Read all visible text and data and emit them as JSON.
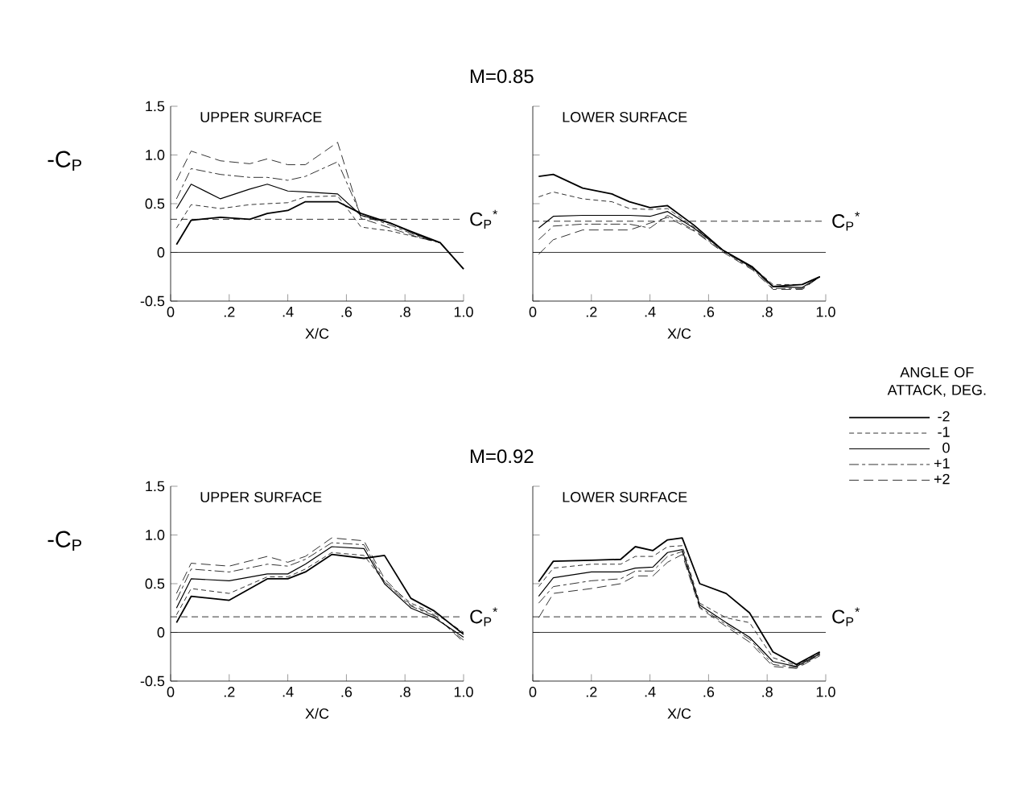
{
  "chart_data": [
    {
      "type": "line",
      "title": "M=0.85",
      "ylabel": "-C$_{P}$",
      "xlabel": "X/C",
      "annotations": [
        "UPPER SURFACE"
      ],
      "xlim": [
        0,
        1.0
      ],
      "ylim": [
        -0.5,
        1.5
      ],
      "xticks": [
        0,
        {
          "value": 0.2,
          "label": ".2"
        },
        {
          "value": 0.4,
          "label": ".4"
        },
        {
          "value": 0.6,
          "label": ".6"
        },
        {
          "value": 0.8,
          "label": ".8"
        },
        {
          "value": 1.0,
          "label": "1.0"
        }
      ],
      "yticks": [
        -0.5,
        0,
        0.5,
        {
          "value": 1.0,
          "label": "1.0"
        },
        1.5
      ],
      "grid": false,
      "legend": false,
      "marker": "none",
      "x": [
        0.02,
        0.07,
        0.17,
        0.27,
        0.33,
        0.4,
        0.46,
        0.57,
        0.65,
        0.75,
        0.85,
        0.92,
        1.0
      ],
      "series": [
        {
          "color": "#000000",
          "line_style": "solid",
          "values": [
            0.08,
            0.33,
            0.36,
            0.34,
            0.4,
            0.43,
            0.52,
            0.52,
            0.4,
            0.3,
            0.18,
            0.1,
            -0.17
          ]
        },
        {
          "color": "#000000",
          "line_style": "dashed",
          "values": [
            0.25,
            0.49,
            0.45,
            0.49,
            0.5,
            0.51,
            0.57,
            0.58,
            0.26,
            0.22,
            0.15,
            0.1,
            -0.17
          ]
        },
        {
          "color": "#000000",
          "line_style": "solid",
          "values": [
            0.45,
            0.7,
            0.55,
            0.65,
            0.7,
            0.63,
            0.62,
            0.6,
            0.38,
            0.3,
            0.17,
            0.1,
            -0.17
          ]
        },
        {
          "color": "#000000",
          "line_style": "dashed",
          "values": [
            0.55,
            0.86,
            0.8,
            0.77,
            0.77,
            0.74,
            0.78,
            0.93,
            0.38,
            0.28,
            0.16,
            0.1,
            -0.17
          ]
        },
        {
          "color": "#000000",
          "line_style": "dashed",
          "values": [
            0.74,
            1.04,
            0.94,
            0.91,
            0.96,
            0.9,
            0.9,
            1.13,
            0.35,
            0.25,
            0.15,
            0.1,
            -0.17
          ]
        }
      ],
      "ref_lines": [
        {
          "axis": "y",
          "value": 0,
          "line_style": "solid"
        },
        {
          "axis": "y",
          "value": 0.34,
          "label": "C$_{P}$$^{*}$",
          "line_style": "dashed"
        }
      ]
    },
    {
      "type": "line",
      "xlabel": "X/C",
      "annotations": [
        "LOWER SURFACE"
      ],
      "xlim": [
        0,
        1.0
      ],
      "ylim": [
        -0.5,
        1.5
      ],
      "xticks": [
        0,
        {
          "value": 0.2,
          "label": ".2"
        },
        {
          "value": 0.4,
          "label": ".4"
        },
        {
          "value": 0.6,
          "label": ".6"
        },
        {
          "value": 0.8,
          "label": ".8"
        },
        {
          "value": 1.0,
          "label": "1.0"
        }
      ],
      "yticks": [
        -0.5,
        0,
        0.5,
        1,
        1.5
      ],
      "tick_labels": "x",
      "grid": false,
      "legend": false,
      "marker": "none",
      "x": [
        0.02,
        0.07,
        0.17,
        0.27,
        0.33,
        0.4,
        0.46,
        0.55,
        0.65,
        0.75,
        0.82,
        0.92,
        0.98
      ],
      "series": [
        {
          "color": "#000000",
          "line_style": "solid",
          "values": [
            0.78,
            0.8,
            0.66,
            0.6,
            0.52,
            0.46,
            0.48,
            0.28,
            0.02,
            -0.15,
            -0.35,
            -0.33,
            -0.25
          ]
        },
        {
          "color": "#000000",
          "line_style": "dashed",
          "values": [
            0.57,
            0.62,
            0.55,
            0.52,
            0.45,
            0.44,
            0.45,
            0.26,
            0.02,
            -0.15,
            -0.33,
            -0.33,
            -0.25
          ]
        },
        {
          "color": "#000000",
          "line_style": "solid",
          "values": [
            0.25,
            0.37,
            0.38,
            0.38,
            0.38,
            0.37,
            0.42,
            0.25,
            0.02,
            -0.16,
            -0.35,
            -0.36,
            -0.25
          ]
        },
        {
          "color": "#000000",
          "line_style": "dashed",
          "values": [
            0.13,
            0.27,
            0.29,
            0.29,
            0.29,
            0.25,
            0.38,
            0.23,
            0.01,
            -0.17,
            -0.37,
            -0.37,
            -0.25
          ]
        },
        {
          "color": "#000000",
          "line_style": "dashed",
          "values": [
            -0.02,
            0.13,
            0.23,
            0.23,
            0.23,
            0.3,
            0.36,
            0.22,
            0.0,
            -0.18,
            -0.38,
            -0.38,
            -0.25
          ]
        }
      ],
      "ref_lines": [
        {
          "axis": "y",
          "value": 0,
          "line_style": "solid"
        },
        {
          "axis": "y",
          "value": 0.32,
          "label": "C$_{P}$$^{*}$",
          "line_style": "dashed"
        }
      ]
    },
    {
      "type": "line",
      "title": "M=0.92",
      "ylabel": "-C$_{P}$",
      "xlabel": "X/C",
      "annotations": [
        "UPPER SURFACE"
      ],
      "xlim": [
        0,
        1.0
      ],
      "ylim": [
        -0.5,
        1.5
      ],
      "xticks": [
        0,
        {
          "value": 0.2,
          "label": ".2"
        },
        {
          "value": 0.4,
          "label": ".4"
        },
        {
          "value": 0.6,
          "label": ".6"
        },
        {
          "value": 0.8,
          "label": ".8"
        },
        {
          "value": 1.0,
          "label": "1.0"
        }
      ],
      "yticks": [
        -0.5,
        0,
        0.5,
        {
          "value": 1.0,
          "label": "1.0"
        },
        1.5
      ],
      "grid": false,
      "legend": false,
      "marker": "none",
      "x": [
        0.02,
        0.07,
        0.2,
        0.33,
        0.4,
        0.46,
        0.55,
        0.66,
        0.73,
        0.82,
        0.9,
        1.0
      ],
      "series": [
        {
          "color": "#000000",
          "line_style": "solid",
          "values": [
            0.1,
            0.37,
            0.33,
            0.55,
            0.55,
            0.62,
            0.8,
            0.76,
            0.79,
            0.35,
            0.22,
            -0.02
          ]
        },
        {
          "color": "#000000",
          "line_style": "dashed",
          "values": [
            0.18,
            0.45,
            0.4,
            0.57,
            0.57,
            0.65,
            0.82,
            0.79,
            0.52,
            0.3,
            0.2,
            0.0
          ]
        },
        {
          "color": "#000000",
          "line_style": "solid",
          "values": [
            0.25,
            0.55,
            0.53,
            0.6,
            0.6,
            0.7,
            0.88,
            0.86,
            0.5,
            0.25,
            0.15,
            -0.05
          ]
        },
        {
          "color": "#000000",
          "line_style": "dashed",
          "values": [
            0.33,
            0.65,
            0.62,
            0.7,
            0.68,
            0.75,
            0.92,
            0.9,
            0.52,
            0.27,
            0.17,
            -0.08
          ]
        },
        {
          "color": "#000000",
          "line_style": "dashed",
          "values": [
            0.4,
            0.71,
            0.68,
            0.78,
            0.72,
            0.78,
            0.97,
            0.94,
            0.55,
            0.28,
            0.18,
            -0.1
          ]
        }
      ],
      "ref_lines": [
        {
          "axis": "y",
          "value": 0,
          "line_style": "solid"
        },
        {
          "axis": "y",
          "value": 0.16,
          "label": "C$_{P}$$^{*}$",
          "line_style": "dashed"
        }
      ]
    },
    {
      "type": "line",
      "xlabel": "X/C",
      "annotations": [
        "LOWER SURFACE"
      ],
      "xlim": [
        0,
        1.0
      ],
      "ylim": [
        -0.5,
        1.5
      ],
      "xticks": [
        0,
        {
          "value": 0.2,
          "label": ".2"
        },
        {
          "value": 0.4,
          "label": ".4"
        },
        {
          "value": 0.6,
          "label": ".6"
        },
        {
          "value": 0.8,
          "label": ".8"
        },
        {
          "value": 1.0,
          "label": "1.0"
        }
      ],
      "yticks": [
        -0.5,
        0,
        0.5,
        1,
        1.5
      ],
      "tick_labels": "x",
      "grid": false,
      "legend": "right",
      "legend_title": "ANGLE OF ATTACK, DEG.",
      "marker": "none",
      "x": [
        0.02,
        0.07,
        0.2,
        0.3,
        0.35,
        0.41,
        0.46,
        0.51,
        0.57,
        0.66,
        0.74,
        0.82,
        0.9,
        0.98
      ],
      "series": [
        {
          "name": "-2",
          "color": "#000000",
          "line_style": "solid",
          "values": [
            0.52,
            0.73,
            0.74,
            0.75,
            0.88,
            0.84,
            0.95,
            0.97,
            0.5,
            0.4,
            0.2,
            -0.2,
            -0.33,
            -0.2
          ]
        },
        {
          "name": "-1",
          "color": "#000000",
          "line_style": "dashed",
          "values": [
            0.47,
            0.66,
            0.7,
            0.7,
            0.78,
            0.78,
            0.88,
            0.89,
            0.3,
            0.15,
            0.1,
            -0.26,
            -0.34,
            -0.21
          ]
        },
        {
          "name": "0",
          "color": "#000000",
          "line_style": "solid",
          "values": [
            0.37,
            0.56,
            0.62,
            0.62,
            0.66,
            0.67,
            0.82,
            0.85,
            0.28,
            0.1,
            -0.05,
            -0.3,
            -0.35,
            -0.22
          ]
        },
        {
          "name": "+1",
          "color": "#000000",
          "line_style": "dashed",
          "values": [
            0.3,
            0.47,
            0.53,
            0.55,
            0.63,
            0.63,
            0.78,
            0.83,
            0.26,
            0.08,
            -0.07,
            -0.33,
            -0.36,
            -0.23
          ]
        },
        {
          "name": "+2",
          "color": "#000000",
          "line_style": "dashed",
          "values": [
            0.15,
            0.4,
            0.45,
            0.5,
            0.58,
            0.58,
            0.72,
            0.8,
            0.25,
            0.06,
            -0.1,
            -0.35,
            -0.37,
            -0.24
          ]
        }
      ],
      "ref_lines": [
        {
          "axis": "y",
          "value": 0,
          "line_style": "solid"
        },
        {
          "axis": "y",
          "value": 0.16,
          "label": "C$_{P}$$^{*}$",
          "line_style": "dashed"
        }
      ]
    }
  ]
}
